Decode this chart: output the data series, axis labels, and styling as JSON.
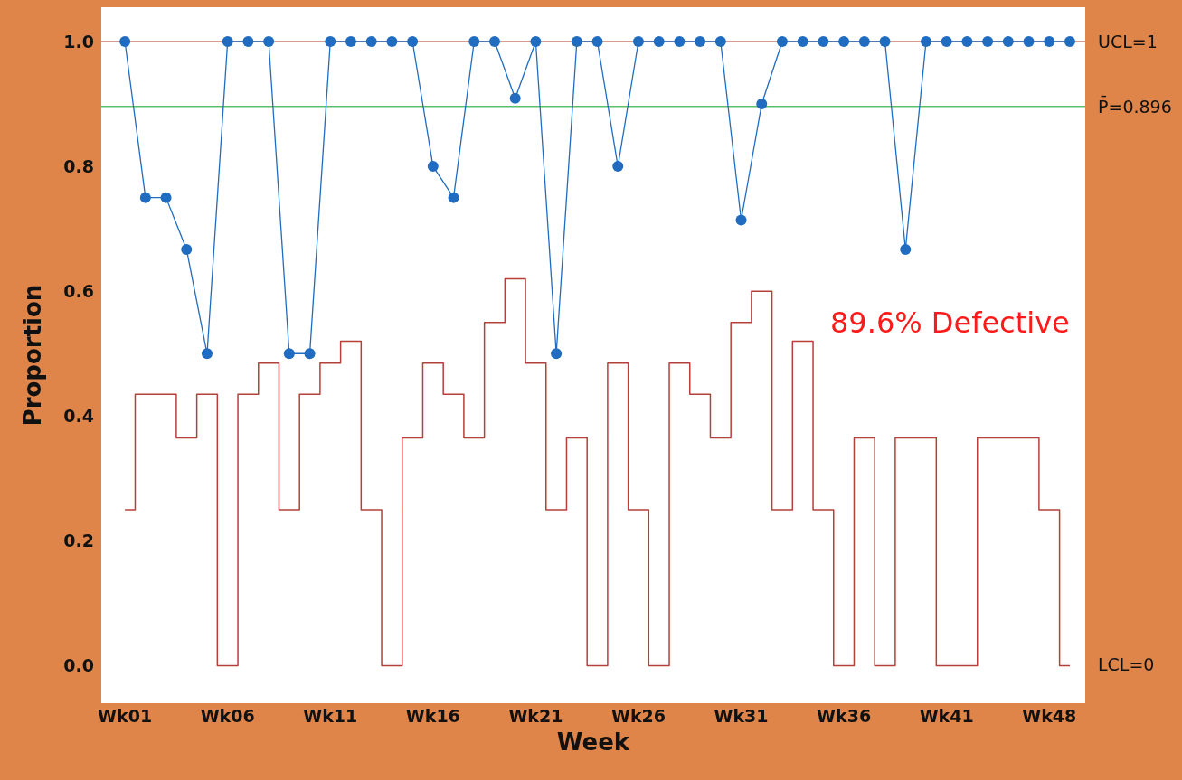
{
  "chart_data": {
    "type": "line",
    "xlabel": "Week",
    "ylabel": "Proportion",
    "categories": [
      "Wk01",
      null,
      null,
      null,
      null,
      "Wk06",
      null,
      null,
      null,
      null,
      "Wk11",
      null,
      null,
      null,
      null,
      "Wk16",
      null,
      null,
      null,
      null,
      "Wk21",
      null,
      null,
      null,
      null,
      "Wk26",
      null,
      null,
      null,
      null,
      "Wk31",
      null,
      null,
      null,
      null,
      "Wk36",
      null,
      null,
      null,
      null,
      "Wk41",
      null,
      null,
      null,
      null,
      "Wk48",
      null
    ],
    "series": [
      {
        "color": "#1f6cc0",
        "marker": "circle",
        "values": [
          1,
          0.75,
          0.75,
          0.667,
          0.5,
          1,
          1,
          1,
          0.5,
          0.5,
          1,
          1,
          1,
          1,
          1,
          0.8,
          0.75,
          1,
          1,
          0.909,
          1,
          0.5,
          1,
          1,
          0.8,
          1,
          1,
          1,
          1,
          1,
          0.714,
          0.9,
          1,
          1,
          1,
          1,
          1,
          1,
          0.667,
          1,
          1,
          1,
          1,
          1,
          1,
          1,
          1
        ]
      },
      {
        "type": "step",
        "color": "#b5403a",
        "marker": "none",
        "values": [
          0.25,
          0.435,
          0.435,
          0.365,
          0.435,
          0,
          0.435,
          0.485,
          0.25,
          0.435,
          0.485,
          0.52,
          0.25,
          0,
          0.365,
          0.485,
          0.435,
          0.365,
          0.55,
          0.62,
          0.485,
          0.25,
          0.365,
          0,
          0.485,
          0.25,
          0,
          0.485,
          0.435,
          0.365,
          0.55,
          0.6,
          0.25,
          0.52,
          0.25,
          0,
          0.365,
          0,
          0.365,
          0.365,
          0,
          0,
          0.365,
          0.365,
          0.365,
          0.25,
          0
        ]
      }
    ],
    "ylim": [
      -0.06,
      1.055
    ],
    "yticks": [
      {
        "value": 0,
        "label": "0.0"
      },
      {
        "value": 0.2,
        "label": "0.2"
      },
      {
        "value": 0.4,
        "label": "0.4"
      },
      {
        "value": 0.6,
        "label": "0.6"
      },
      {
        "value": 0.8,
        "label": "0.8"
      },
      {
        "value": 1,
        "label": "1.0"
      }
    ],
    "ref_lines": [
      {
        "axis": "y",
        "value": 1,
        "label": "UCL=1",
        "color": "#d0776c"
      },
      {
        "axis": "y",
        "value": 0.896,
        "label": "P̄=0.896",
        "color": "#5cbf6a"
      }
    ],
    "annotations": [
      "LCL=0",
      "89.6% Defective"
    ],
    "grid": false,
    "legend": false
  }
}
